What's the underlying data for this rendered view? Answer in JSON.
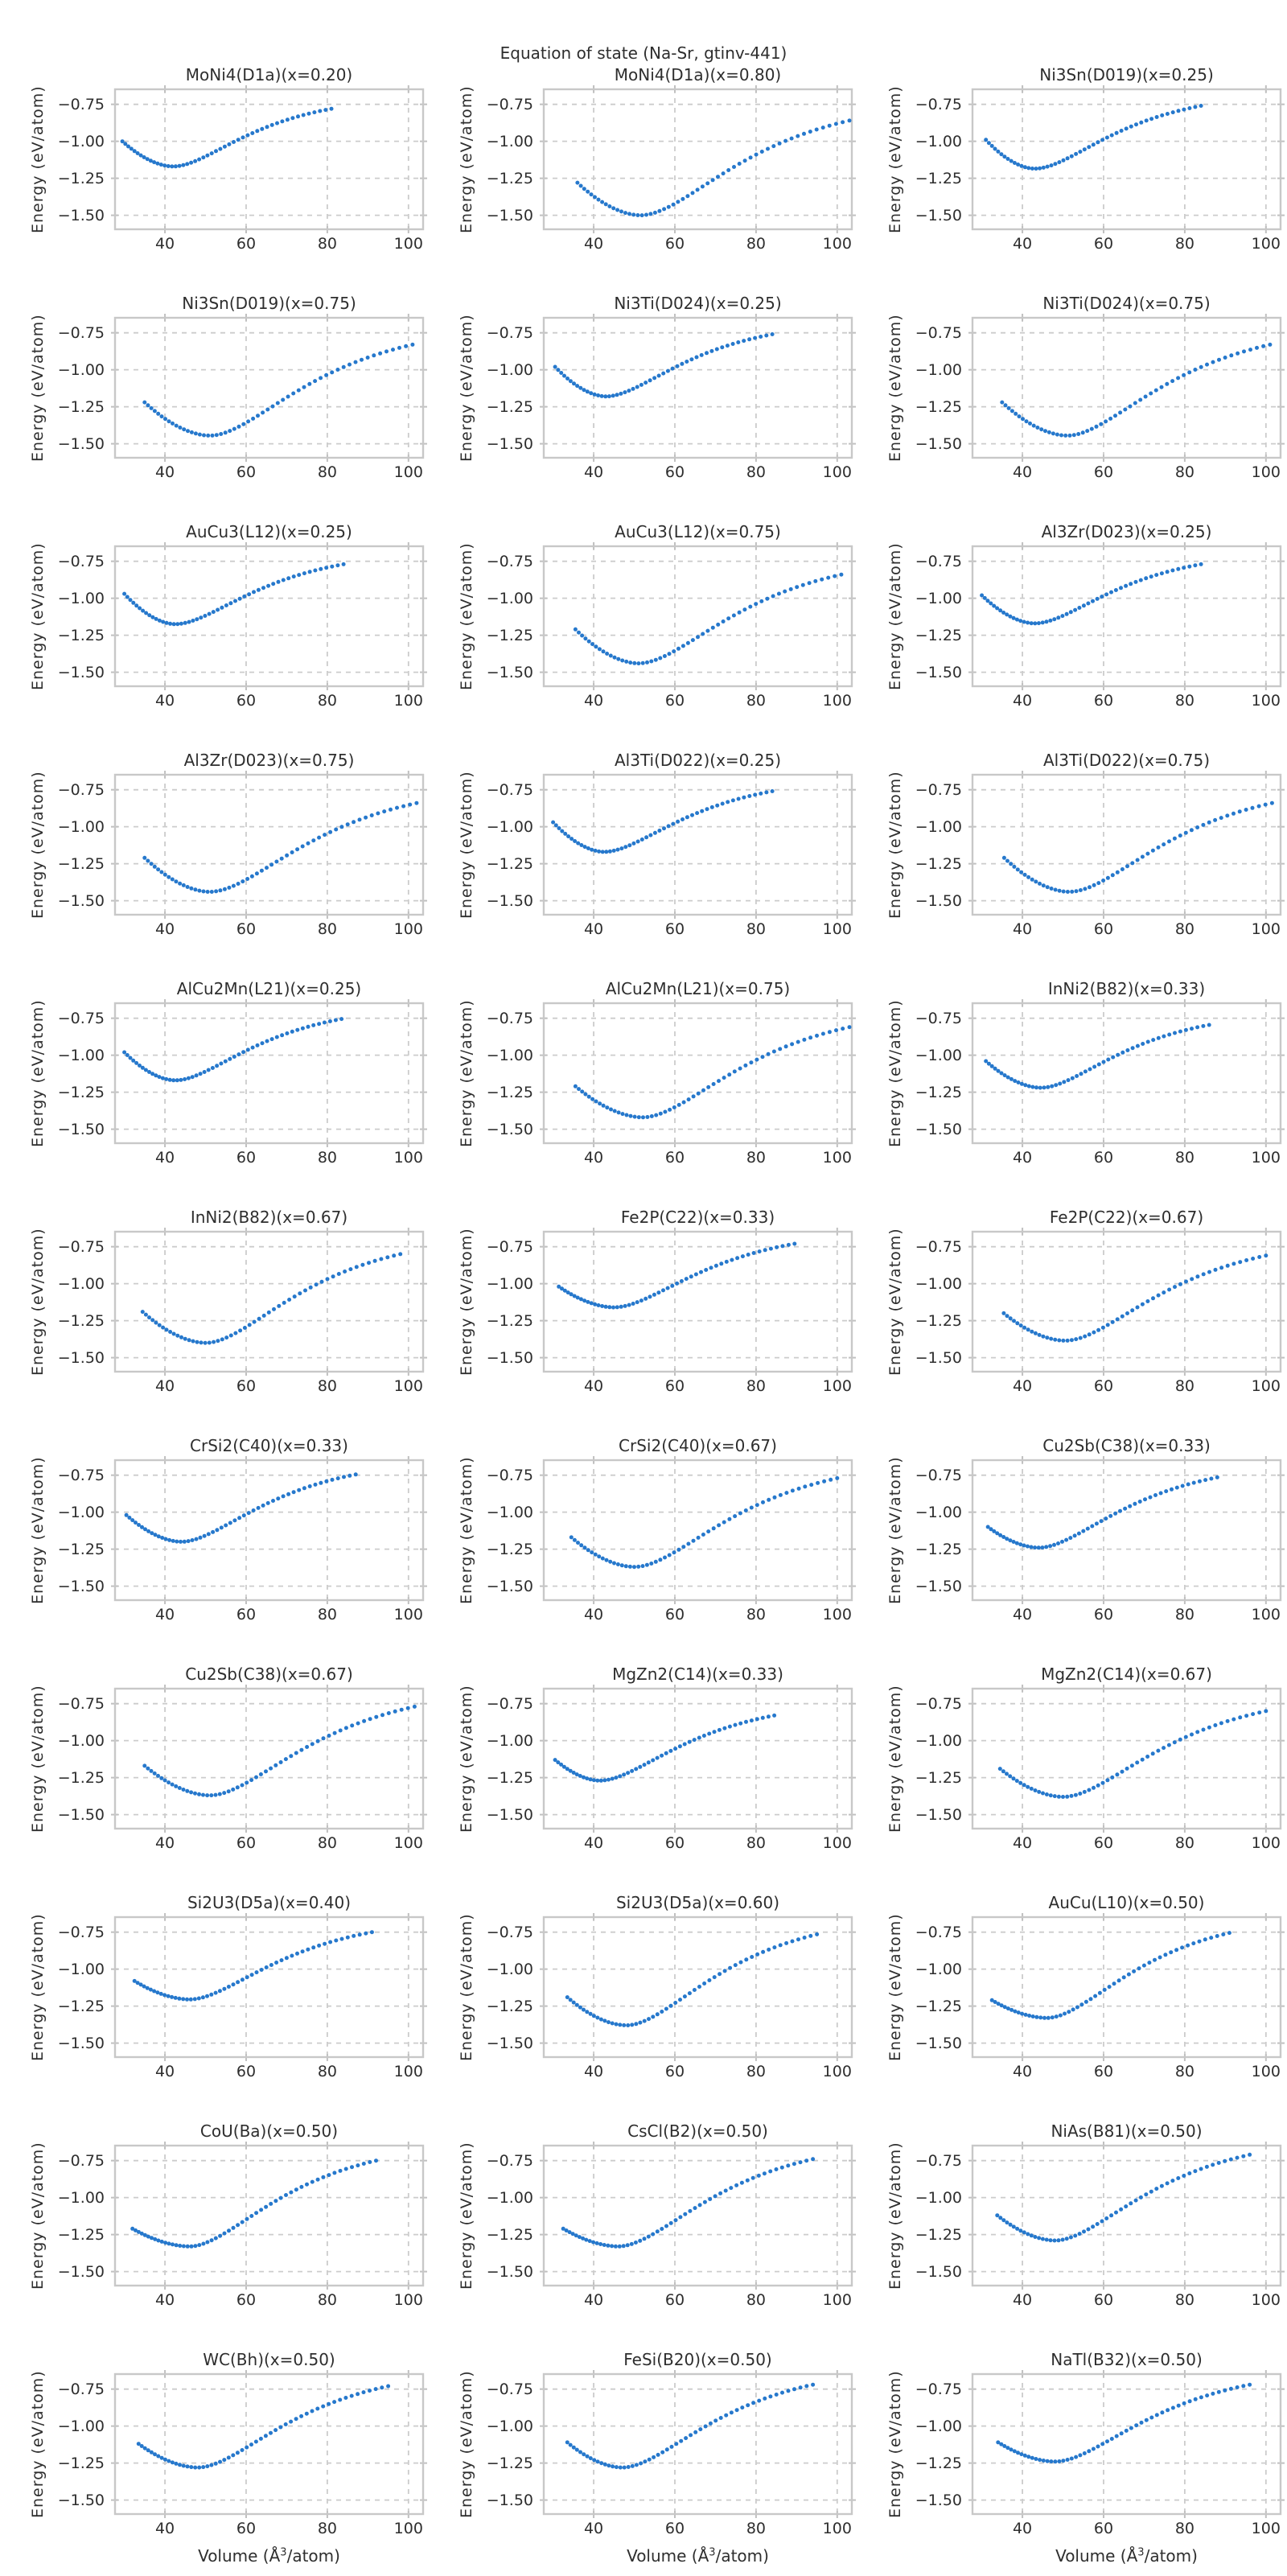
{
  "figure": {
    "suptitle": "Equation of state (Na-Sr, gtinv-441)"
  },
  "axes": {
    "ylabel": "Energy (eV/atom)",
    "xlabel_prefix": "Volume (Å",
    "xlabel_sup": "3",
    "xlabel_suffix": "/atom)",
    "xlabel_full": "Volume (Å³/atom)",
    "xticks": [
      40,
      60,
      80,
      100
    ],
    "xtick_labels": [
      "40",
      "60",
      "80",
      "100"
    ],
    "yticks": [
      -0.75,
      -1.0,
      -1.25,
      -1.5
    ],
    "ytick_labels": [
      "−0.75",
      "−1.00",
      "−1.25",
      "−1.50"
    ],
    "xlim": [
      27.5,
      103.8
    ],
    "ylim": [
      -1.6,
      -0.643
    ],
    "grid": true,
    "grid_color": "#cccccc",
    "spine_color": "#c8c8c8",
    "tick_color": "#c0c0c0",
    "marker_color": "#2678cc",
    "text_color": "#2e2e2e",
    "legend": "none"
  },
  "chart_data": [
    {
      "type": "scatter",
      "title": "MoNi4(D1a)(x=0.20)",
      "v_start": 29.5,
      "e_start": -1.0,
      "v_min": 42.0,
      "e_min": -1.17,
      "v_end": 81.0,
      "e_end": -0.78
    },
    {
      "type": "scatter",
      "title": "MoNi4(D1a)(x=0.80)",
      "v_start": 36.0,
      "e_start": -1.28,
      "v_min": 51.5,
      "e_min": -1.5,
      "v_end": 103.0,
      "e_end": -0.86
    },
    {
      "type": "scatter",
      "title": "Ni3Sn(D019)(x=0.25)",
      "v_start": 31.0,
      "e_start": -0.99,
      "v_min": 43.0,
      "e_min": -1.185,
      "v_end": 84.0,
      "e_end": -0.76
    },
    {
      "type": "scatter",
      "title": "Ni3Sn(D019)(x=0.75)",
      "v_start": 35.0,
      "e_start": -1.22,
      "v_min": 51.0,
      "e_min": -1.445,
      "v_end": 101.0,
      "e_end": -0.83
    },
    {
      "type": "scatter",
      "title": "Ni3Ti(D024)(x=0.25)",
      "v_start": 30.5,
      "e_start": -0.98,
      "v_min": 43.0,
      "e_min": -1.18,
      "v_end": 84.0,
      "e_end": -0.76
    },
    {
      "type": "scatter",
      "title": "Ni3Ti(D024)(x=0.75)",
      "v_start": 35.0,
      "e_start": -1.22,
      "v_min": 51.0,
      "e_min": -1.445,
      "v_end": 101.0,
      "e_end": -0.83
    },
    {
      "type": "scatter",
      "title": "AuCu3(L12)(x=0.25)",
      "v_start": 30.0,
      "e_start": -0.97,
      "v_min": 42.5,
      "e_min": -1.175,
      "v_end": 84.0,
      "e_end": -0.77
    },
    {
      "type": "scatter",
      "title": "AuCu3(L12)(x=0.75)",
      "v_start": 35.5,
      "e_start": -1.21,
      "v_min": 51.0,
      "e_min": -1.44,
      "v_end": 101.0,
      "e_end": -0.84
    },
    {
      "type": "scatter",
      "title": "Al3Zr(D023)(x=0.25)",
      "v_start": 30.0,
      "e_start": -0.98,
      "v_min": 43.0,
      "e_min": -1.17,
      "v_end": 84.0,
      "e_end": -0.77
    },
    {
      "type": "scatter",
      "title": "Al3Zr(D023)(x=0.75)",
      "v_start": 35.0,
      "e_start": -1.21,
      "v_min": 51.0,
      "e_min": -1.44,
      "v_end": 102.0,
      "e_end": -0.84
    },
    {
      "type": "scatter",
      "title": "Al3Ti(D022)(x=0.25)",
      "v_start": 30.0,
      "e_start": -0.97,
      "v_min": 42.5,
      "e_min": -1.17,
      "v_end": 84.0,
      "e_end": -0.76
    },
    {
      "type": "scatter",
      "title": "Al3Ti(D022)(x=0.75)",
      "v_start": 35.5,
      "e_start": -1.21,
      "v_min": 51.5,
      "e_min": -1.44,
      "v_end": 101.5,
      "e_end": -0.84
    },
    {
      "type": "scatter",
      "title": "AlCu2Mn(L21)(x=0.25)",
      "v_start": 30.0,
      "e_start": -0.98,
      "v_min": 42.5,
      "e_min": -1.17,
      "v_end": 83.5,
      "e_end": -0.755
    },
    {
      "type": "scatter",
      "title": "AlCu2Mn(L21)(x=0.75)",
      "v_start": 35.5,
      "e_start": -1.21,
      "v_min": 52.0,
      "e_min": -1.42,
      "v_end": 103.0,
      "e_end": -0.81
    },
    {
      "type": "scatter",
      "title": "InNi2(B82)(x=0.33)",
      "v_start": 31.0,
      "e_start": -1.04,
      "v_min": 44.5,
      "e_min": -1.22,
      "v_end": 86.0,
      "e_end": -0.795
    },
    {
      "type": "scatter",
      "title": "InNi2(B82)(x=0.67)",
      "v_start": 34.5,
      "e_start": -1.19,
      "v_min": 50.0,
      "e_min": -1.4,
      "v_end": 98.0,
      "e_end": -0.8
    },
    {
      "type": "scatter",
      "title": "Fe2P(C22)(x=0.33)",
      "v_start": 31.4,
      "e_start": -1.02,
      "v_min": 45.0,
      "e_min": -1.16,
      "v_end": 89.5,
      "e_end": -0.73
    },
    {
      "type": "scatter",
      "title": "Fe2P(C22)(x=0.67)",
      "v_start": 35.4,
      "e_start": -1.2,
      "v_min": 50.5,
      "e_min": -1.385,
      "v_end": 100.0,
      "e_end": -0.81
    },
    {
      "type": "scatter",
      "title": "CrSi2(C40)(x=0.33)",
      "v_start": 30.5,
      "e_start": -1.02,
      "v_min": 44.0,
      "e_min": -1.2,
      "v_end": 87.0,
      "e_end": -0.745
    },
    {
      "type": "scatter",
      "title": "CrSi2(C40)(x=0.67)",
      "v_start": 34.5,
      "e_start": -1.17,
      "v_min": 50.0,
      "e_min": -1.37,
      "v_end": 100.0,
      "e_end": -0.77
    },
    {
      "type": "scatter",
      "title": "Cu2Sb(C38)(x=0.33)",
      "v_start": 31.5,
      "e_start": -1.1,
      "v_min": 44.0,
      "e_min": -1.24,
      "v_end": 88.0,
      "e_end": -0.765
    },
    {
      "type": "scatter",
      "title": "Cu2Sb(C38)(x=0.67)",
      "v_start": 35.0,
      "e_start": -1.17,
      "v_min": 51.0,
      "e_min": -1.37,
      "v_end": 101.5,
      "e_end": -0.77
    },
    {
      "type": "scatter",
      "title": "MgZn2(C14)(x=0.33)",
      "v_start": 30.5,
      "e_start": -1.13,
      "v_min": 41.5,
      "e_min": -1.27,
      "v_end": 84.5,
      "e_end": -0.83
    },
    {
      "type": "scatter",
      "title": "MgZn2(C14)(x=0.67)",
      "v_start": 34.5,
      "e_start": -1.19,
      "v_min": 50.0,
      "e_min": -1.38,
      "v_end": 100.0,
      "e_end": -0.8
    },
    {
      "type": "scatter",
      "title": "Si2U3(D5a)(x=0.40)",
      "v_start": 32.5,
      "e_start": -1.08,
      "v_min": 46.0,
      "e_min": -1.205,
      "v_end": 91.0,
      "e_end": -0.75
    },
    {
      "type": "scatter",
      "title": "Si2U3(D5a)(x=0.60)",
      "v_start": 33.5,
      "e_start": -1.19,
      "v_min": 48.0,
      "e_min": -1.38,
      "v_end": 95.0,
      "e_end": -0.765
    },
    {
      "type": "scatter",
      "title": "AuCu(L10)(x=0.50)",
      "v_start": 32.5,
      "e_start": -1.21,
      "v_min": 46.0,
      "e_min": -1.33,
      "v_end": 91.0,
      "e_end": -0.755
    },
    {
      "type": "scatter",
      "title": "CoU(Ba)(x=0.50)",
      "v_start": 32.0,
      "e_start": -1.21,
      "v_min": 46.0,
      "e_min": -1.33,
      "v_end": 92.0,
      "e_end": -0.75
    },
    {
      "type": "scatter",
      "title": "CsCl(B2)(x=0.50)",
      "v_start": 32.5,
      "e_start": -1.21,
      "v_min": 46.0,
      "e_min": -1.33,
      "v_end": 94.0,
      "e_end": -0.74
    },
    {
      "type": "scatter",
      "title": "NiAs(B81)(x=0.50)",
      "v_start": 33.8,
      "e_start": -1.12,
      "v_min": 48.0,
      "e_min": -1.29,
      "v_end": 96.0,
      "e_end": -0.71
    },
    {
      "type": "scatter",
      "title": "WC(Bh)(x=0.50)",
      "v_start": 33.5,
      "e_start": -1.12,
      "v_min": 48.0,
      "e_min": -1.28,
      "v_end": 95.0,
      "e_end": -0.73
    },
    {
      "type": "scatter",
      "title": "FeSi(B20)(x=0.50)",
      "v_start": 33.5,
      "e_start": -1.11,
      "v_min": 47.0,
      "e_min": -1.28,
      "v_end": 94.0,
      "e_end": -0.72
    },
    {
      "type": "scatter",
      "title": "NaTl(B32)(x=0.50)",
      "v_start": 34.0,
      "e_start": -1.11,
      "v_min": 48.0,
      "e_min": -1.24,
      "v_end": 96.0,
      "e_end": -0.72
    }
  ]
}
